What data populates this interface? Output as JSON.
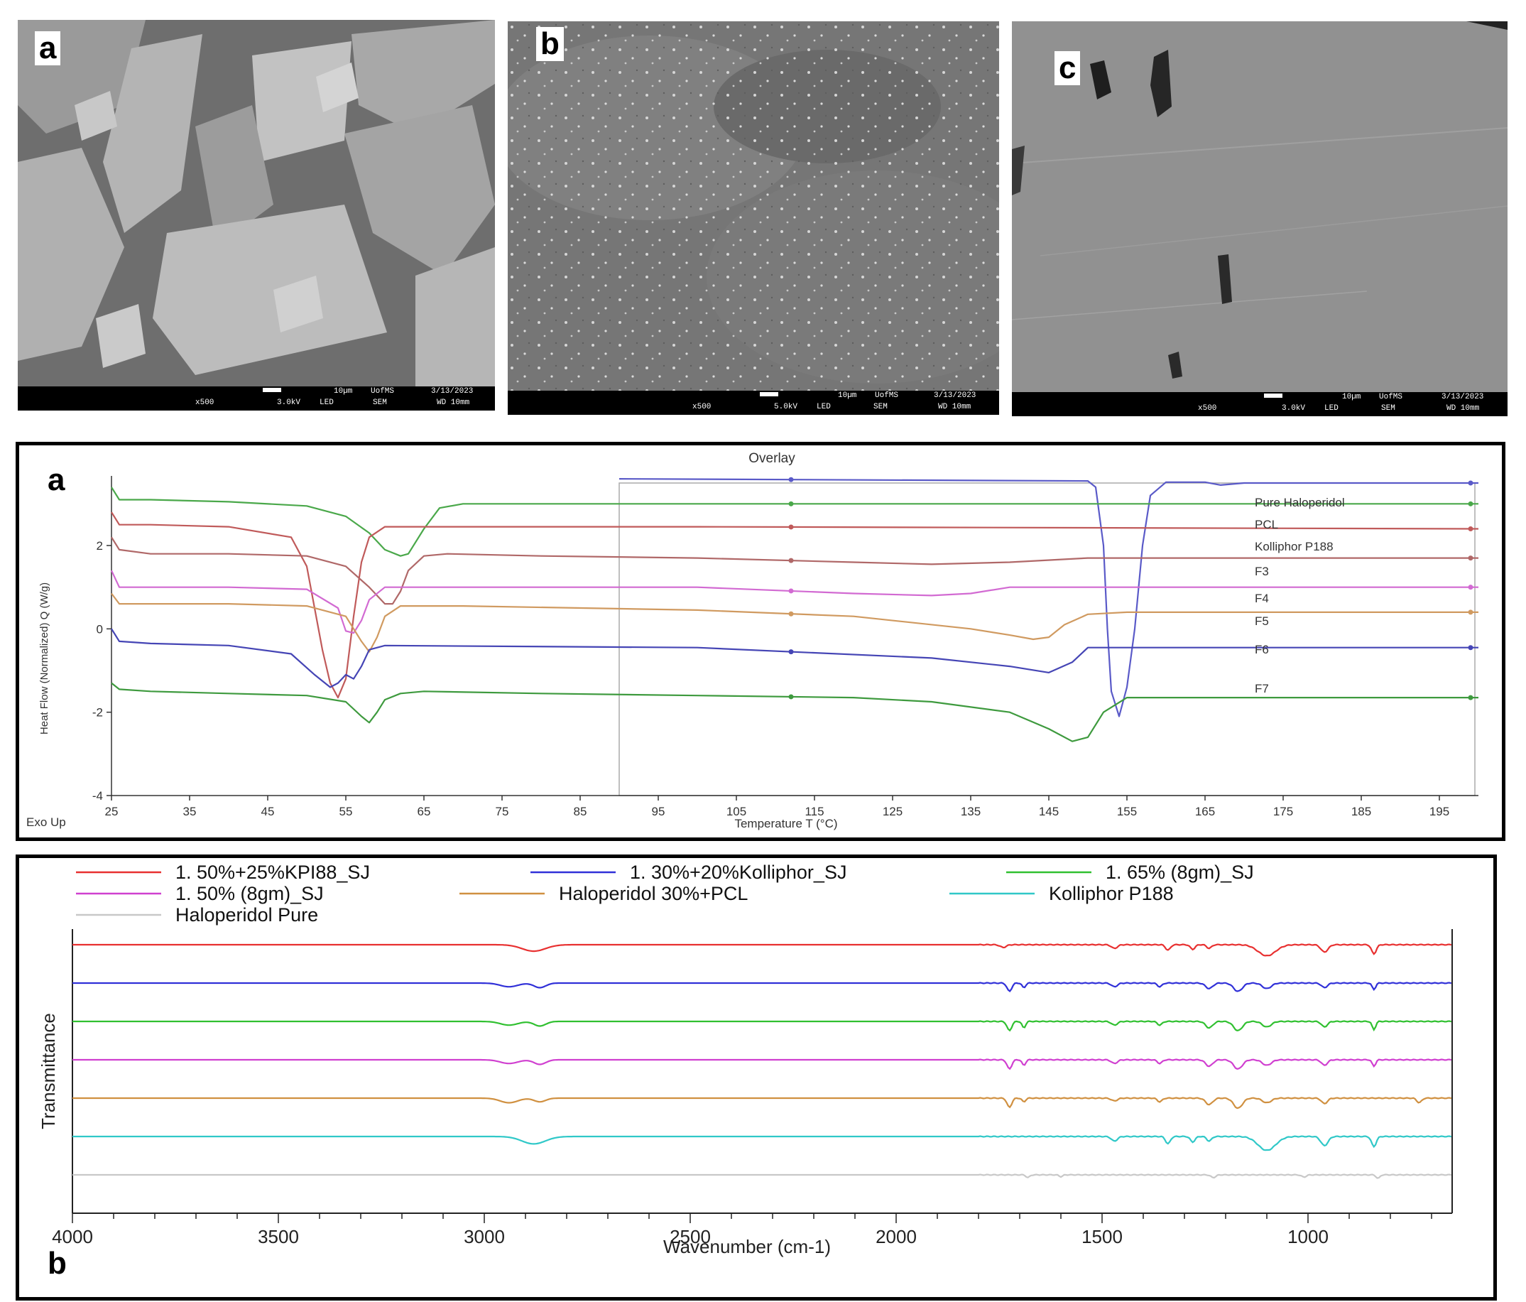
{
  "sem_panels": [
    {
      "letter": "a",
      "mag": "x500",
      "kv": "3.0kV",
      "det": "LED",
      "mode": "SEM",
      "scale": "10µm",
      "org": "UofMS",
      "date": "3/13/2023",
      "wd": "WD 10mm"
    },
    {
      "letter": "b",
      "mag": "x500",
      "kv": "5.0kV",
      "det": "LED",
      "mode": "SEM",
      "scale": "10µm",
      "org": "UofMS",
      "date": "3/13/2023",
      "wd": "WD 10mm"
    },
    {
      "letter": "c",
      "mag": "x500",
      "kv": "3.0kV",
      "det": "LED",
      "mode": "SEM",
      "scale": "10µm",
      "org": "UofMS",
      "date": "3/13/2023",
      "wd": "WD 10mm"
    }
  ],
  "chart_data": [
    {
      "type": "line",
      "panel_letter": "a",
      "title": "Overlay",
      "xlabel": "Temperature  T  (°C)",
      "ylabel": "Heat Flow (Normalized) Q (W/g)",
      "corner_label": "Exo Up",
      "xlim": [
        25,
        200
      ],
      "ylim": [
        -4,
        3.5
      ],
      "xticks": [
        25,
        35,
        45,
        55,
        65,
        75,
        85,
        95,
        105,
        115,
        125,
        135,
        145,
        155,
        165,
        175,
        185,
        195
      ],
      "yticks": [
        2,
        0,
        -2,
        -4
      ],
      "legend_placement": "right",
      "legend": [
        "Pure Haloperidol",
        "PCL",
        "Kolliphor P188",
        "F3",
        "F4",
        "F5",
        "F6",
        "F7"
      ],
      "series": [
        {
          "color": "#5a5ac8",
          "x": [
            90,
            150,
            151,
            152,
            152.5,
            153,
            154,
            155,
            156,
            157,
            158,
            160,
            165,
            167,
            170,
            200
          ],
          "y": [
            3.6,
            3.55,
            3.4,
            2.0,
            0,
            -1.5,
            -2.1,
            -1.4,
            0,
            2.0,
            3.2,
            3.52,
            3.52,
            3.45,
            3.5,
            3.5
          ]
        },
        {
          "color": "#4aa84a",
          "x": [
            25,
            26,
            30,
            40,
            50,
            55,
            58,
            60,
            62,
            63,
            65,
            67,
            70,
            80,
            100,
            150,
            200
          ],
          "y": [
            3.4,
            3.1,
            3.1,
            3.05,
            2.95,
            2.7,
            2.3,
            1.9,
            1.75,
            1.8,
            2.4,
            2.9,
            3.0,
            3.0,
            3.0,
            3.0,
            3.0
          ]
        },
        {
          "color": "#c05a5a",
          "x": [
            25,
            26,
            30,
            40,
            48,
            50,
            51,
            52,
            53,
            54,
            55,
            56,
            57,
            58,
            60,
            70,
            100,
            200
          ],
          "y": [
            2.8,
            2.5,
            2.5,
            2.45,
            2.2,
            1.5,
            0.5,
            -0.5,
            -1.3,
            -1.65,
            -1.2,
            0.3,
            1.6,
            2.2,
            2.45,
            2.45,
            2.45,
            2.4
          ]
        },
        {
          "color": "#b06868",
          "x": [
            25,
            26,
            30,
            40,
            50,
            55,
            58,
            60,
            61,
            62,
            63,
            65,
            68,
            80,
            100,
            120,
            130,
            140,
            150,
            200
          ],
          "y": [
            2.2,
            1.9,
            1.8,
            1.8,
            1.75,
            1.5,
            1.0,
            0.6,
            0.6,
            0.9,
            1.4,
            1.75,
            1.8,
            1.75,
            1.7,
            1.6,
            1.55,
            1.6,
            1.7,
            1.7
          ]
        },
        {
          "color": "#d26ad2",
          "x": [
            25,
            26,
            30,
            40,
            50,
            54,
            55,
            56,
            57,
            58,
            60,
            70,
            100,
            120,
            130,
            135,
            140,
            150,
            200
          ],
          "y": [
            1.4,
            1.0,
            1.0,
            1.0,
            0.95,
            0.5,
            -0.05,
            -0.1,
            0.2,
            0.7,
            1.0,
            1.0,
            1.0,
            0.85,
            0.8,
            0.85,
            1.0,
            1.0,
            1.0
          ]
        },
        {
          "color": "#d09a60",
          "x": [
            25,
            26,
            30,
            40,
            50,
            55,
            57,
            58,
            59,
            60,
            62,
            70,
            100,
            120,
            135,
            140,
            143,
            145,
            147,
            150,
            155,
            200
          ],
          "y": [
            0.85,
            0.6,
            0.6,
            0.6,
            0.55,
            0.3,
            -0.3,
            -0.55,
            -0.2,
            0.3,
            0.55,
            0.55,
            0.45,
            0.3,
            0.0,
            -0.15,
            -0.25,
            -0.2,
            0.1,
            0.35,
            0.4,
            0.4
          ]
        },
        {
          "color": "#4545b5",
          "x": [
            25,
            26,
            30,
            40,
            48,
            51,
            53,
            54,
            55,
            56,
            57,
            58,
            60,
            100,
            130,
            140,
            145,
            148,
            150,
            155,
            200
          ],
          "y": [
            0.0,
            -0.3,
            -0.35,
            -0.4,
            -0.6,
            -1.1,
            -1.4,
            -1.3,
            -1.1,
            -1.2,
            -0.9,
            -0.5,
            -0.4,
            -0.45,
            -0.7,
            -0.9,
            -1.05,
            -0.8,
            -0.45,
            -0.45,
            -0.45
          ]
        },
        {
          "color": "#3e9a3e",
          "x": [
            25,
            26,
            30,
            40,
            50,
            55,
            57,
            58,
            59,
            60,
            62,
            65,
            80,
            100,
            120,
            130,
            140,
            145,
            148,
            150,
            152,
            155,
            200
          ],
          "y": [
            -1.3,
            -1.45,
            -1.5,
            -1.55,
            -1.6,
            -1.75,
            -2.1,
            -2.25,
            -2.0,
            -1.7,
            -1.55,
            -1.5,
            -1.55,
            -1.6,
            -1.65,
            -1.75,
            -2.0,
            -2.4,
            -2.7,
            -2.6,
            -2.0,
            -1.65,
            -1.65
          ]
        }
      ]
    },
    {
      "type": "line",
      "panel_letter": "b",
      "title": "",
      "xlabel": "Wavenumber (cm-1)",
      "ylabel": "Transmittance",
      "xlim": [
        4000,
        650
      ],
      "xticks": [
        4000,
        3500,
        3000,
        2500,
        2000,
        1500,
        1000
      ],
      "legend_placement": "top",
      "series": [
        {
          "name": "1. 50%+25%KPI88_SJ",
          "color": "#e83030",
          "baseline": 0.0,
          "peaks": [
            [
              2880,
              0.35,
              40
            ],
            [
              1740,
              0.15,
              10
            ],
            [
              1470,
              0.2,
              10
            ],
            [
              1340,
              0.3,
              8
            ],
            [
              1280,
              0.25,
              8
            ],
            [
              1240,
              0.2,
              8
            ],
            [
              1100,
              0.6,
              30
            ],
            [
              960,
              0.4,
              12
            ],
            [
              840,
              0.5,
              8
            ]
          ]
        },
        {
          "name": "1. 30%+20%Kolliphor_SJ",
          "color": "#3030d8",
          "baseline": 1.0,
          "peaks": [
            [
              2940,
              0.2,
              30
            ],
            [
              2865,
              0.25,
              20
            ],
            [
              1725,
              0.45,
              8
            ],
            [
              1690,
              0.25,
              6
            ],
            [
              1470,
              0.2,
              10
            ],
            [
              1360,
              0.2,
              8
            ],
            [
              1240,
              0.3,
              12
            ],
            [
              1170,
              0.45,
              15
            ],
            [
              1100,
              0.3,
              15
            ],
            [
              960,
              0.25,
              10
            ],
            [
              840,
              0.35,
              6
            ]
          ]
        },
        {
          "name": "1. 65% (8gm)_SJ",
          "color": "#30c030",
          "baseline": 2.0,
          "peaks": [
            [
              2940,
              0.2,
              30
            ],
            [
              2865,
              0.25,
              20
            ],
            [
              1725,
              0.5,
              8
            ],
            [
              1690,
              0.35,
              6
            ],
            [
              1470,
              0.2,
              10
            ],
            [
              1360,
              0.2,
              8
            ],
            [
              1240,
              0.35,
              12
            ],
            [
              1170,
              0.5,
              15
            ],
            [
              1100,
              0.3,
              15
            ],
            [
              960,
              0.3,
              10
            ],
            [
              840,
              0.45,
              6
            ]
          ]
        },
        {
          "name": "1. 50% (8gm)_SJ",
          "color": "#d040d0",
          "baseline": 3.0,
          "peaks": [
            [
              2940,
              0.2,
              30
            ],
            [
              2865,
              0.25,
              20
            ],
            [
              1725,
              0.5,
              8
            ],
            [
              1690,
              0.3,
              6
            ],
            [
              1470,
              0.2,
              10
            ],
            [
              1360,
              0.2,
              8
            ],
            [
              1240,
              0.35,
              12
            ],
            [
              1170,
              0.5,
              15
            ],
            [
              1100,
              0.3,
              15
            ],
            [
              960,
              0.3,
              10
            ],
            [
              840,
              0.35,
              6
            ]
          ]
        },
        {
          "name": "Haloperidol 30%+PCL",
          "color": "#d09040",
          "baseline": 4.0,
          "peaks": [
            [
              2940,
              0.25,
              30
            ],
            [
              2865,
              0.2,
              20
            ],
            [
              1725,
              0.5,
              8
            ],
            [
              1690,
              0.2,
              6
            ],
            [
              1470,
              0.15,
              10
            ],
            [
              1360,
              0.2,
              8
            ],
            [
              1240,
              0.35,
              12
            ],
            [
              1170,
              0.55,
              15
            ],
            [
              1100,
              0.25,
              15
            ],
            [
              960,
              0.3,
              10
            ],
            [
              730,
              0.25,
              8
            ]
          ]
        },
        {
          "name": "Kolliphor P188",
          "color": "#30c8c8",
          "baseline": 5.0,
          "peaks": [
            [
              2880,
              0.4,
              40
            ],
            [
              1470,
              0.25,
              10
            ],
            [
              1340,
              0.4,
              8
            ],
            [
              1280,
              0.3,
              8
            ],
            [
              1240,
              0.25,
              8
            ],
            [
              1100,
              0.75,
              30
            ],
            [
              960,
              0.5,
              12
            ],
            [
              840,
              0.55,
              8
            ]
          ]
        },
        {
          "name": "Haloperidol Pure",
          "color": "#c8c8c8",
          "baseline": 6.0,
          "peaks": [
            [
              1680,
              0.15,
              6
            ],
            [
              1600,
              0.1,
              6
            ],
            [
              1230,
              0.15,
              8
            ],
            [
              1010,
              0.12,
              8
            ],
            [
              830,
              0.2,
              6
            ]
          ]
        }
      ]
    }
  ]
}
